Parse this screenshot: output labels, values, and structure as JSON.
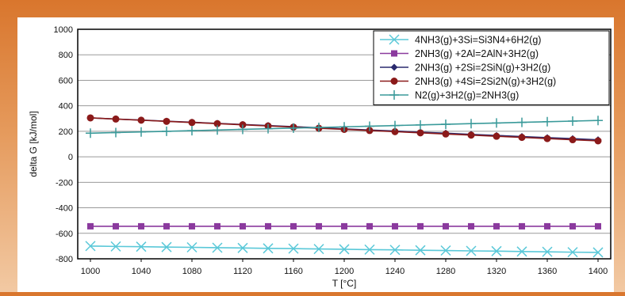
{
  "chart_data": {
    "type": "line",
    "title": "",
    "xlabel": "T [°C]",
    "ylabel": "delta G [kJ/mol]",
    "xlim": [
      990,
      1410
    ],
    "ylim": [
      -800,
      1000
    ],
    "xticks": [
      1000,
      1040,
      1080,
      1120,
      1160,
      1200,
      1240,
      1280,
      1320,
      1360,
      1400
    ],
    "yticks": [
      -800,
      -600,
      -400,
      -200,
      0,
      200,
      400,
      600,
      800,
      1000
    ],
    "grid": true,
    "legend_position": "top-right",
    "x": [
      1000,
      1020,
      1040,
      1060,
      1080,
      1100,
      1120,
      1140,
      1160,
      1180,
      1200,
      1220,
      1240,
      1260,
      1280,
      1300,
      1320,
      1340,
      1360,
      1380,
      1400
    ],
    "series": [
      {
        "name": "4NH3(g)+3Si=Si3N4+6H2(g)",
        "color": "#5ac8d8",
        "marker": "x",
        "values": [
          -700,
          -703,
          -705,
          -708,
          -710,
          -713,
          -715,
          -718,
          -720,
          -723,
          -725,
          -728,
          -730,
          -733,
          -735,
          -738,
          -740,
          -743,
          -745,
          -748,
          -750
        ]
      },
      {
        "name": "2NH3(g) +2Al=2AlN+3H2(g)",
        "color": "#8b3a9e",
        "marker": "square",
        "values": [
          -545,
          -545,
          -545,
          -545,
          -545,
          -545,
          -545,
          -545,
          -545,
          -545,
          -545,
          -545,
          -545,
          -545,
          -545,
          -545,
          -545,
          -545,
          -545,
          -545,
          -545
        ]
      },
      {
        "name": "2NH3(g) +2Si=2SiN(g)+3H2(g)",
        "color": "#2a2a6e",
        "marker": "diamond",
        "values": [
          305,
          296,
          288,
          279,
          271,
          262,
          253,
          245,
          236,
          228,
          219,
          210,
          202,
          193,
          185,
          176,
          167,
          159,
          150,
          142,
          133
        ]
      },
      {
        "name": "2NH3(g) +4Si=2Si2N(g)+3H2(g)",
        "color": "#8b1a1a",
        "marker": "circle",
        "values": [
          305,
          296,
          287,
          278,
          269,
          260,
          251,
          242,
          233,
          224,
          215,
          206,
          197,
          188,
          179,
          170,
          161,
          152,
          143,
          134,
          125
        ]
      },
      {
        "name": "N2(g)+3H2(g)=2NH3(g)",
        "color": "#3a9a9a",
        "marker": "plus",
        "values": [
          185,
          190,
          195,
          200,
          205,
          210,
          215,
          220,
          225,
          230,
          235,
          240,
          245,
          250,
          255,
          260,
          265,
          270,
          275,
          280,
          285
        ]
      }
    ]
  }
}
